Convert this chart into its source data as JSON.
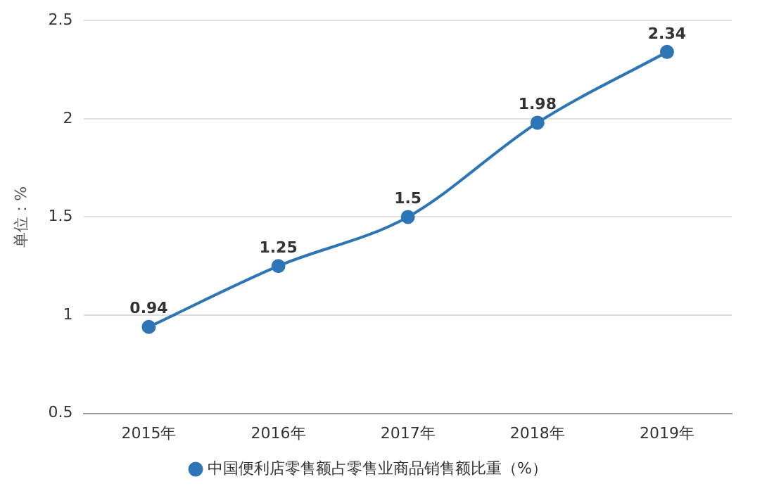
{
  "chart_data": {
    "type": "line",
    "ylabel": "单位：%",
    "categories": [
      "2015年",
      "2016年",
      "2017年",
      "2018年",
      "2019年"
    ],
    "series": [
      {
        "name": "中国便利店零售额占零售业商品销售额比重（%）",
        "color": "#2e75b6",
        "values": [
          0.94,
          1.25,
          1.5,
          1.98,
          2.34
        ]
      }
    ],
    "ylim": [
      0.5,
      2.5
    ],
    "yticks": [
      0.5,
      1,
      1.5,
      2,
      2.5
    ],
    "grid": "y",
    "legend": "bottom",
    "marker": "circle",
    "data_labels": true
  }
}
